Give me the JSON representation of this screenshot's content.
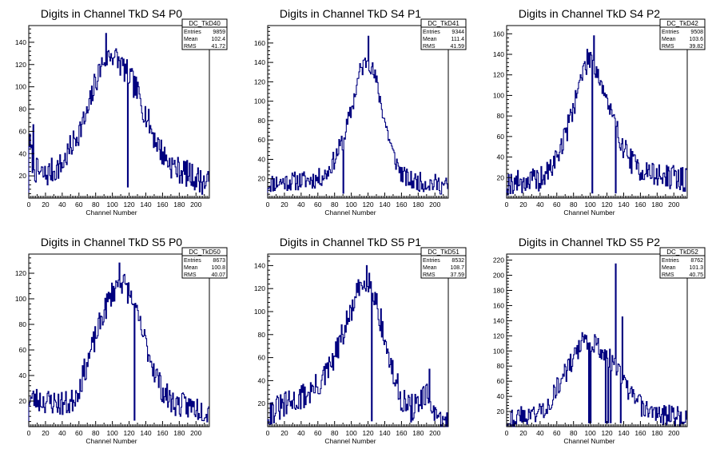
{
  "colors": {
    "line": "#00007f",
    "axis": "#000000",
    "background": "#ffffff"
  },
  "chart_data": [
    {
      "type": "bar",
      "title": "Digits in Channel TkD S4 P0",
      "xlabel": "Channel Number",
      "xlim": [
        0,
        216
      ],
      "ylim": [
        0,
        155
      ],
      "xticks": [
        0,
        20,
        40,
        60,
        80,
        100,
        120,
        140,
        160,
        180,
        200
      ],
      "yticks": [
        20,
        40,
        60,
        80,
        100,
        120,
        140
      ],
      "stats": {
        "name": "DC_TkD40",
        "rows": [
          [
            "Entries",
            "9859"
          ],
          [
            "Mean",
            "102.4"
          ],
          [
            "RMS",
            "41.72"
          ]
        ]
      },
      "profile": [
        [
          0,
          55
        ],
        [
          4,
          35
        ],
        [
          8,
          25
        ],
        [
          14,
          22
        ],
        [
          20,
          20
        ],
        [
          26,
          24
        ],
        [
          30,
          25
        ],
        [
          40,
          30
        ],
        [
          50,
          45
        ],
        [
          60,
          60
        ],
        [
          70,
          75
        ],
        [
          80,
          105
        ],
        [
          90,
          125
        ],
        [
          100,
          130
        ],
        [
          110,
          120
        ],
        [
          120,
          110
        ],
        [
          130,
          95
        ],
        [
          140,
          75
        ],
        [
          150,
          55
        ],
        [
          160,
          40
        ],
        [
          170,
          30
        ],
        [
          180,
          25
        ],
        [
          190,
          22
        ],
        [
          200,
          18
        ],
        [
          210,
          14
        ],
        [
          216,
          12
        ]
      ],
      "spikes": [
        [
          5,
          66
        ],
        [
          92,
          148
        ],
        [
          118,
          10
        ]
      ],
      "noise": 12,
      "seed": 7
    },
    {
      "type": "bar",
      "title": "Digits in Channel TkD S4 P1",
      "xlabel": "Channel Number",
      "xlim": [
        0,
        216
      ],
      "ylim": [
        0,
        178
      ],
      "xticks": [
        0,
        20,
        40,
        60,
        80,
        100,
        120,
        140,
        160,
        180,
        200
      ],
      "yticks": [
        20,
        40,
        60,
        80,
        100,
        120,
        140,
        160
      ],
      "stats": {
        "name": "DC_TkD41",
        "rows": [
          [
            "Entries",
            "9344"
          ],
          [
            "Mean",
            "111.4"
          ],
          [
            "RMS",
            "41.59"
          ]
        ]
      },
      "profile": [
        [
          0,
          15
        ],
        [
          20,
          17
        ],
        [
          40,
          18
        ],
        [
          60,
          20
        ],
        [
          70,
          25
        ],
        [
          80,
          40
        ],
        [
          90,
          60
        ],
        [
          100,
          90
        ],
        [
          110,
          130
        ],
        [
          120,
          145
        ],
        [
          130,
          120
        ],
        [
          140,
          80
        ],
        [
          150,
          45
        ],
        [
          160,
          25
        ],
        [
          170,
          18
        ],
        [
          180,
          17
        ],
        [
          200,
          15
        ],
        [
          216,
          12
        ]
      ],
      "spikes": [
        [
          90,
          5
        ],
        [
          120,
          167
        ]
      ],
      "noise": 10,
      "seed": 11
    },
    {
      "type": "bar",
      "title": "Digits in Channel TkD S4 P2",
      "xlabel": "Channel Number",
      "xlim": [
        0,
        216
      ],
      "ylim": [
        0,
        168
      ],
      "xticks": [
        0,
        20,
        40,
        60,
        80,
        100,
        120,
        140,
        160,
        180,
        200
      ],
      "yticks": [
        20,
        40,
        60,
        80,
        100,
        120,
        140,
        160
      ],
      "stats": {
        "name": "DC_TkD42",
        "rows": [
          [
            "Entries",
            "9508"
          ],
          [
            "Mean",
            "103.6"
          ],
          [
            "RMS",
            "39.82"
          ]
        ]
      },
      "profile": [
        [
          0,
          15
        ],
        [
          20,
          16
        ],
        [
          40,
          18
        ],
        [
          50,
          25
        ],
        [
          60,
          40
        ],
        [
          70,
          60
        ],
        [
          80,
          90
        ],
        [
          90,
          120
        ],
        [
          100,
          140
        ],
        [
          110,
          120
        ],
        [
          120,
          95
        ],
        [
          130,
          70
        ],
        [
          140,
          50
        ],
        [
          150,
          35
        ],
        [
          160,
          28
        ],
        [
          170,
          25
        ],
        [
          180,
          22
        ],
        [
          200,
          20
        ],
        [
          216,
          18
        ]
      ],
      "spikes": [
        [
          102,
          5
        ],
        [
          104,
          158
        ],
        [
          130,
          5
        ]
      ],
      "noise": 12,
      "seed": 19
    },
    {
      "type": "bar",
      "title": "Digits in Channel TkD S5 P0",
      "xlabel": "Channel Number",
      "xlim": [
        0,
        216
      ],
      "ylim": [
        0,
        135
      ],
      "xticks": [
        0,
        10,
        20,
        30,
        40,
        50,
        60,
        70,
        80,
        90,
        100,
        110,
        120,
        130,
        140,
        150,
        160,
        170,
        180,
        190,
        200,
        210
      ],
      "xtick_labels": [
        "0",
        "",
        "20",
        "",
        "40",
        "",
        "60",
        "",
        "80",
        "",
        "100",
        "",
        "120",
        "",
        "140",
        "",
        "160",
        "",
        "180",
        "",
        "200",
        ""
      ],
      "yticks": [
        20,
        40,
        60,
        80,
        100,
        120
      ],
      "stats": {
        "name": "DC_TkD50",
        "rows": [
          [
            "Entries",
            "8673"
          ],
          [
            "Mean",
            "100.8"
          ],
          [
            "RMS",
            "40.07"
          ]
        ]
      },
      "profile": [
        [
          0,
          22
        ],
        [
          20,
          20
        ],
        [
          40,
          18
        ],
        [
          50,
          18
        ],
        [
          60,
          30
        ],
        [
          70,
          50
        ],
        [
          80,
          70
        ],
        [
          90,
          90
        ],
        [
          100,
          105
        ],
        [
          110,
          115
        ],
        [
          120,
          105
        ],
        [
          130,
          85
        ],
        [
          140,
          65
        ],
        [
          150,
          45
        ],
        [
          160,
          28
        ],
        [
          170,
          20
        ],
        [
          180,
          17
        ],
        [
          200,
          15
        ],
        [
          216,
          12
        ]
      ],
      "spikes": [
        [
          108,
          128
        ],
        [
          126,
          5
        ]
      ],
      "noise": 10,
      "seed": 23
    },
    {
      "type": "bar",
      "title": "Digits in Channel TkD S5 P1",
      "xlabel": "Channel Number",
      "xlim": [
        0,
        216
      ],
      "ylim": [
        0,
        150
      ],
      "xticks": [
        0,
        10,
        20,
        30,
        40,
        50,
        60,
        70,
        80,
        90,
        100,
        110,
        120,
        130,
        140,
        150,
        160,
        170,
        180,
        190,
        200,
        210
      ],
      "xtick_labels": [
        "0",
        "",
        "20",
        "",
        "40",
        "",
        "60",
        "",
        "80",
        "",
        "100",
        "",
        "120",
        "",
        "140",
        "",
        "160",
        "",
        "180",
        "",
        "200",
        ""
      ],
      "yticks": [
        20,
        40,
        60,
        80,
        100,
        120,
        140
      ],
      "stats": {
        "name": "DC_TkD51",
        "rows": [
          [
            "Entries",
            "8532"
          ],
          [
            "Mean",
            "108.7"
          ],
          [
            "RMS",
            "37.59"
          ]
        ]
      },
      "profile": [
        [
          0,
          12
        ],
        [
          20,
          18
        ],
        [
          40,
          25
        ],
        [
          60,
          35
        ],
        [
          70,
          45
        ],
        [
          80,
          60
        ],
        [
          90,
          80
        ],
        [
          100,
          100
        ],
        [
          110,
          120
        ],
        [
          120,
          130
        ],
        [
          130,
          110
        ],
        [
          140,
          75
        ],
        [
          150,
          45
        ],
        [
          160,
          25
        ],
        [
          170,
          15
        ],
        [
          180,
          20
        ],
        [
          190,
          25
        ],
        [
          195,
          25
        ],
        [
          200,
          5
        ],
        [
          216,
          2
        ]
      ],
      "spikes": [
        [
          118,
          140
        ],
        [
          124,
          5
        ],
        [
          193,
          50
        ]
      ],
      "noise": 12,
      "seed": 31
    },
    {
      "type": "bar",
      "title": "Digits in Channel TkD S5 P2",
      "xlabel": "Channel Number",
      "xlim": [
        0,
        216
      ],
      "ylim": [
        0,
        228
      ],
      "xticks": [
        0,
        10,
        20,
        30,
        40,
        50,
        60,
        70,
        80,
        90,
        100,
        110,
        120,
        130,
        140,
        150,
        160,
        170,
        180,
        190,
        200,
        210
      ],
      "xtick_labels": [
        "0",
        "",
        "20",
        "",
        "40",
        "",
        "60",
        "",
        "80",
        "",
        "100",
        "",
        "120",
        "",
        "140",
        "",
        "160",
        "",
        "180",
        "",
        "200",
        ""
      ],
      "yticks": [
        20,
        40,
        60,
        80,
        100,
        120,
        140,
        160,
        180,
        200,
        220
      ],
      "stats": {
        "name": "DC_TkD52",
        "rows": [
          [
            "Entries",
            "8762"
          ],
          [
            "Mean",
            "101.3"
          ],
          [
            "RMS",
            "40.75"
          ]
        ]
      },
      "profile": [
        [
          0,
          10
        ],
        [
          20,
          14
        ],
        [
          40,
          20
        ],
        [
          50,
          30
        ],
        [
          60,
          50
        ],
        [
          70,
          70
        ],
        [
          80,
          90
        ],
        [
          90,
          110
        ],
        [
          100,
          115
        ],
        [
          110,
          105
        ],
        [
          120,
          95
        ],
        [
          130,
          80
        ],
        [
          140,
          60
        ],
        [
          150,
          40
        ],
        [
          160,
          28
        ],
        [
          170,
          20
        ],
        [
          180,
          18
        ],
        [
          200,
          14
        ],
        [
          216,
          10
        ]
      ],
      "spikes": [
        [
          98,
          5
        ],
        [
          100,
          5
        ],
        [
          118,
          5
        ],
        [
          121,
          5
        ],
        [
          124,
          5
        ],
        [
          130,
          215
        ],
        [
          136,
          5
        ],
        [
          138,
          145
        ]
      ],
      "noise": 14,
      "seed": 43
    }
  ]
}
